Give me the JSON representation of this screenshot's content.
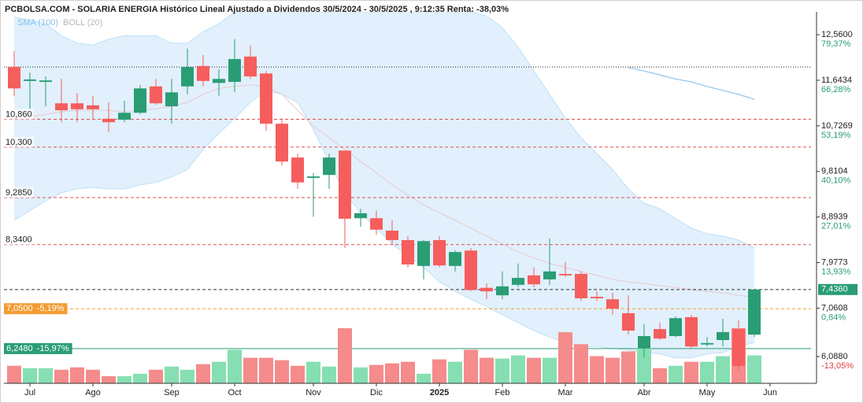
{
  "chart_data": {
    "type": "candlestick",
    "title": "PCBOLSA.COM - SOLARIA ENERGIA Histórico Lineal Ajustado a Dividendos 30/5/2024 - 30/5/2025 , 9:12:35 Renta: -38,03%",
    "legend": [
      {
        "name": "SMA (100)",
        "color": "#7fc4ea"
      },
      {
        "name": "BOLL (20)",
        "color": "#b8b8b8"
      }
    ],
    "colors": {
      "up": "#2a9d74",
      "down": "#f65d5d",
      "volume_up": "#86dfb2",
      "volume_down": "#f58b8b",
      "band": "#dcedfb",
      "band_line": "#bfe0f6",
      "mid": "#e8c8cc",
      "sma": "#8ec5e8"
    },
    "categories": [
      null,
      "Jul",
      null,
      null,
      null,
      "Ago",
      null,
      null,
      null,
      null,
      "Sep",
      null,
      null,
      null,
      "Oct",
      null,
      null,
      null,
      null,
      "Nov",
      null,
      null,
      null,
      "Dic",
      null,
      null,
      null,
      "2025",
      null,
      null,
      null,
      "Feb",
      null,
      null,
      null,
      "Mar",
      null,
      null,
      null,
      null,
      "Abr",
      null,
      null,
      null,
      "May",
      null,
      null,
      null,
      "Jun"
    ],
    "open": [
      11.91,
      11.63,
      11.61,
      11.18,
      11.18,
      11.14,
      10.87,
      10.85,
      10.99,
      11.52,
      11.12,
      11.52,
      11.93,
      11.59,
      11.61,
      12.12,
      11.78,
      10.77,
      10.09,
      9.68,
      9.74,
      10.23,
      8.87,
      8.87,
      8.62,
      8.43,
      7.91,
      8.43,
      7.91,
      8.22,
      7.47,
      7.32,
      7.53,
      7.72,
      7.64,
      7.75,
      7.75,
      7.29,
      7.24,
      6.96,
      6.25,
      6.64,
      6.5,
      6.88,
      6.33,
      6.42,
      6.64,
      6.53,
      null
    ],
    "high": [
      12.23,
      11.8,
      11.72,
      11.67,
      11.39,
      11.33,
      11.2,
      11.23,
      11.55,
      11.67,
      11.67,
      12.28,
      12.15,
      11.86,
      12.47,
      12.34,
      11.83,
      10.88,
      10.17,
      9.78,
      10.17,
      10.23,
      9.06,
      9.02,
      8.83,
      8.51,
      8.43,
      8.51,
      8.22,
      8.27,
      7.56,
      7.8,
      7.96,
      7.88,
      8.46,
      7.99,
      7.8,
      7.4,
      7.37,
      7.32,
      6.74,
      6.77,
      6.9,
      6.93,
      6.48,
      6.85,
      6.82,
      7.436,
      null
    ],
    "low": [
      11.33,
      11.07,
      11.12,
      10.8,
      10.8,
      10.85,
      10.6,
      10.8,
      10.96,
      11.15,
      10.77,
      11.36,
      11.52,
      11.33,
      11.4,
      11.67,
      10.63,
      9.93,
      9.46,
      8.9,
      9.46,
      8.27,
      8.7,
      8.54,
      8.35,
      7.88,
      7.64,
      7.88,
      7.8,
      7.4,
      7.24,
      7.24,
      7.48,
      7.48,
      7.53,
      7.69,
      7.21,
      7.21,
      6.93,
      6.53,
      6.06,
      6.42,
      6.48,
      6.26,
      6.29,
      6.29,
      5.82,
      6.48,
      null
    ],
    "close": [
      11.48,
      11.66,
      11.64,
      11.04,
      11.06,
      11.06,
      10.8,
      10.99,
      11.48,
      11.18,
      11.4,
      11.91,
      11.63,
      11.67,
      12.07,
      11.72,
      10.77,
      10.01,
      9.59,
      9.71,
      10.09,
      8.86,
      8.97,
      8.64,
      8.43,
      7.94,
      8.41,
      7.92,
      8.19,
      7.43,
      7.4,
      7.5,
      7.67,
      7.54,
      7.8,
      7.72,
      7.26,
      7.26,
      7.05,
      6.61,
      6.5,
      6.45,
      6.86,
      6.29,
      6.36,
      6.58,
      5.9,
      7.436,
      null
    ],
    "volume": [
      22,
      19,
      19,
      17,
      20,
      17,
      9,
      9,
      12,
      17,
      21,
      17,
      24,
      27,
      42,
      32,
      32,
      29,
      22,
      27,
      21,
      69,
      20,
      23,
      25,
      27,
      12,
      30,
      27,
      42,
      32,
      31,
      35,
      32,
      32,
      64,
      49,
      34,
      32,
      40,
      44,
      19,
      22,
      27,
      27,
      34,
      69,
      35,
      null
    ],
    "boll_upper": [
      12.91,
      12.86,
      12.78,
      12.54,
      12.39,
      12.35,
      12.47,
      12.54,
      12.54,
      12.54,
      12.39,
      12.39,
      12.62,
      12.78,
      13.02,
      13.02,
      13.02,
      13.02,
      13.02,
      13.02,
      13.02,
      13.02,
      13.02,
      13.02,
      13.02,
      13.02,
      13.02,
      13.02,
      13.02,
      13.02,
      12.94,
      12.7,
      12.31,
      11.83,
      11.36,
      10.88,
      10.49,
      10.17,
      9.85,
      9.46,
      9.17,
      9.06,
      8.86,
      8.67,
      8.56,
      8.51,
      8.43,
      8.27,
      null
    ],
    "boll_mid": [
      10.88,
      10.91,
      10.96,
      11.01,
      11.04,
      11.04,
      11.04,
      11.01,
      11.04,
      11.07,
      11.12,
      11.2,
      11.36,
      11.48,
      11.52,
      11.55,
      11.52,
      11.36,
      11.04,
      10.72,
      10.49,
      10.25,
      10.01,
      9.78,
      9.54,
      9.33,
      9.14,
      8.98,
      8.83,
      8.67,
      8.51,
      8.35,
      8.19,
      8.07,
      7.96,
      7.88,
      7.8,
      7.72,
      7.64,
      7.59,
      7.56,
      7.51,
      7.48,
      7.43,
      7.4,
      7.37,
      7.32,
      7.28,
      null
    ],
    "boll_lower": [
      8.83,
      9.02,
      9.22,
      9.38,
      9.46,
      9.49,
      9.46,
      9.46,
      9.54,
      9.59,
      9.7,
      9.85,
      10.25,
      10.57,
      10.88,
      11.2,
      11.44,
      11.36,
      11.2,
      10.65,
      10.01,
      9.38,
      8.98,
      8.67,
      8.35,
      8.11,
      7.88,
      7.59,
      7.4,
      7.24,
      7.09,
      6.93,
      6.77,
      6.61,
      6.48,
      6.37,
      6.29,
      6.29,
      6.25,
      6.22,
      6.17,
      6.14,
      6.06,
      6.06,
      6.14,
      6.17,
      6.29,
      6.37,
      null
    ],
    "sma": [
      null,
      null,
      null,
      null,
      null,
      null,
      null,
      null,
      null,
      null,
      null,
      null,
      null,
      null,
      null,
      null,
      null,
      null,
      null,
      null,
      null,
      null,
      null,
      null,
      null,
      null,
      null,
      null,
      null,
      null,
      null,
      null,
      null,
      null,
      null,
      null,
      null,
      null,
      null,
      11.9,
      11.83,
      11.75,
      11.67,
      11.61,
      11.52,
      11.44,
      11.36,
      11.26,
      null
    ],
    "ylim": [
      5.55,
      13.02
    ],
    "yticks": [
      {
        "value": 12.56,
        "label": "12,5600"
      },
      {
        "value": 11.6434,
        "label": "11,6434"
      },
      {
        "value": 10.7269,
        "label": "10,7269"
      },
      {
        "value": 9.8104,
        "label": "9,8104"
      },
      {
        "value": 8.8939,
        "label": "8,8939"
      },
      {
        "value": 7.9773,
        "label": "7,9773"
      },
      {
        "value": 7.0608,
        "label": "7,0608"
      },
      {
        "value": 6.088,
        "label": "6,0880"
      }
    ],
    "ytick_changes": [
      {
        "value": 79.37,
        "label": "79,37%"
      },
      {
        "value": 66.28,
        "label": "66,28%"
      },
      {
        "value": 53.19,
        "label": "53,19%"
      },
      {
        "value": 40.1,
        "label": "40,10%"
      },
      {
        "value": 27.01,
        "label": "27,01%"
      },
      {
        "value": 13.93,
        "label": "13,93%"
      },
      {
        "value": 0.84,
        "label": "0,84%"
      },
      {
        "value": -13.05,
        "label": "-13,05%"
      }
    ],
    "levels": [
      {
        "value": 11.91,
        "color": "#222222",
        "dash": "dotted"
      },
      {
        "value": 10.86,
        "label": "10,860",
        "color": "#e05050",
        "dash": "dashed"
      },
      {
        "value": 10.3,
        "label": "10,300",
        "color": "#e05050",
        "dash": "dashed"
      },
      {
        "value": 9.285,
        "label": "9,2850",
        "color": "#e05050",
        "dash": "dashed"
      },
      {
        "value": 8.34,
        "label": "8,3400",
        "color": "#e05050",
        "dash": "dashed"
      },
      {
        "value": 7.05,
        "label": "7,0500",
        "change": {
          "value": -5.19,
          "label": "-5,19%"
        },
        "color": "#f39c33",
        "dash": "dashed"
      },
      {
        "value": 6.248,
        "label": "6,2480",
        "change": {
          "value": -15.97,
          "label": "-15,97%"
        },
        "color": "#2a9d74",
        "dash": "solid"
      }
    ],
    "last_price": {
      "value": 7.436,
      "label": "7,4360",
      "color": "#2a9d74"
    }
  }
}
